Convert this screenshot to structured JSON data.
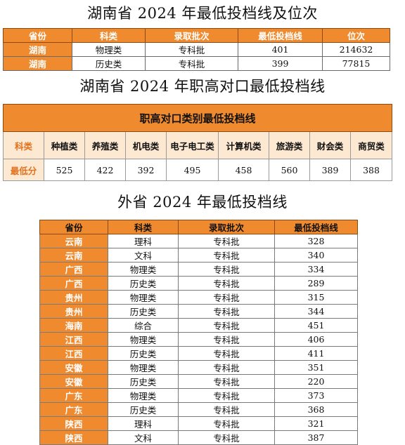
{
  "title1": "湖南省 2024 年最低投档线及位次",
  "table1": {
    "headers": [
      "省份",
      "科类",
      "录取批次",
      "最低投档线",
      "位次"
    ],
    "rows": [
      [
        "湖南",
        "物理类",
        "专科批",
        "401",
        "214632"
      ],
      [
        "湖南",
        "历史类",
        "专科批",
        "399",
        "77815"
      ]
    ]
  },
  "title2": "湖南省 2024 年职高对口最低投档线",
  "table2": {
    "heading": "职高对口类别最低投档线",
    "row_label_1": "科类",
    "row_label_2": "最低分",
    "categories": [
      "种植类",
      "养殖类",
      "机电类",
      "电子电工类",
      "计算机类",
      "旅游类",
      "财会类",
      "商贸类"
    ],
    "scores": [
      "525",
      "422",
      "392",
      "495",
      "458",
      "560",
      "389",
      "388"
    ]
  },
  "title3": "外省 2024 年最低投档线",
  "table3": {
    "headers": [
      "省份",
      "科类",
      "录取批次",
      "最低投档线"
    ],
    "rows": [
      [
        "云南",
        "理科",
        "专科批",
        "328"
      ],
      [
        "云南",
        "文科",
        "专科批",
        "340"
      ],
      [
        "广西",
        "物理类",
        "专科批",
        "334"
      ],
      [
        "广西",
        "历史类",
        "专科批",
        "289"
      ],
      [
        "贵州",
        "物理类",
        "专科批",
        "315"
      ],
      [
        "贵州",
        "历史类",
        "专科批",
        "344"
      ],
      [
        "海南",
        "综合",
        "专科批",
        "451"
      ],
      [
        "江西",
        "物理类",
        "专科批",
        "406"
      ],
      [
        "江西",
        "历史类",
        "专科批",
        "411"
      ],
      [
        "安徽",
        "物理类",
        "专科批",
        "351"
      ],
      [
        "安徽",
        "历史类",
        "专科批",
        "220"
      ],
      [
        "广东",
        "物理类",
        "专科批",
        "373"
      ],
      [
        "广东",
        "历史类",
        "专科批",
        "368"
      ],
      [
        "陕西",
        "理科",
        "专科批",
        "321"
      ],
      [
        "陕西",
        "文科",
        "专科批",
        "387"
      ]
    ]
  }
}
